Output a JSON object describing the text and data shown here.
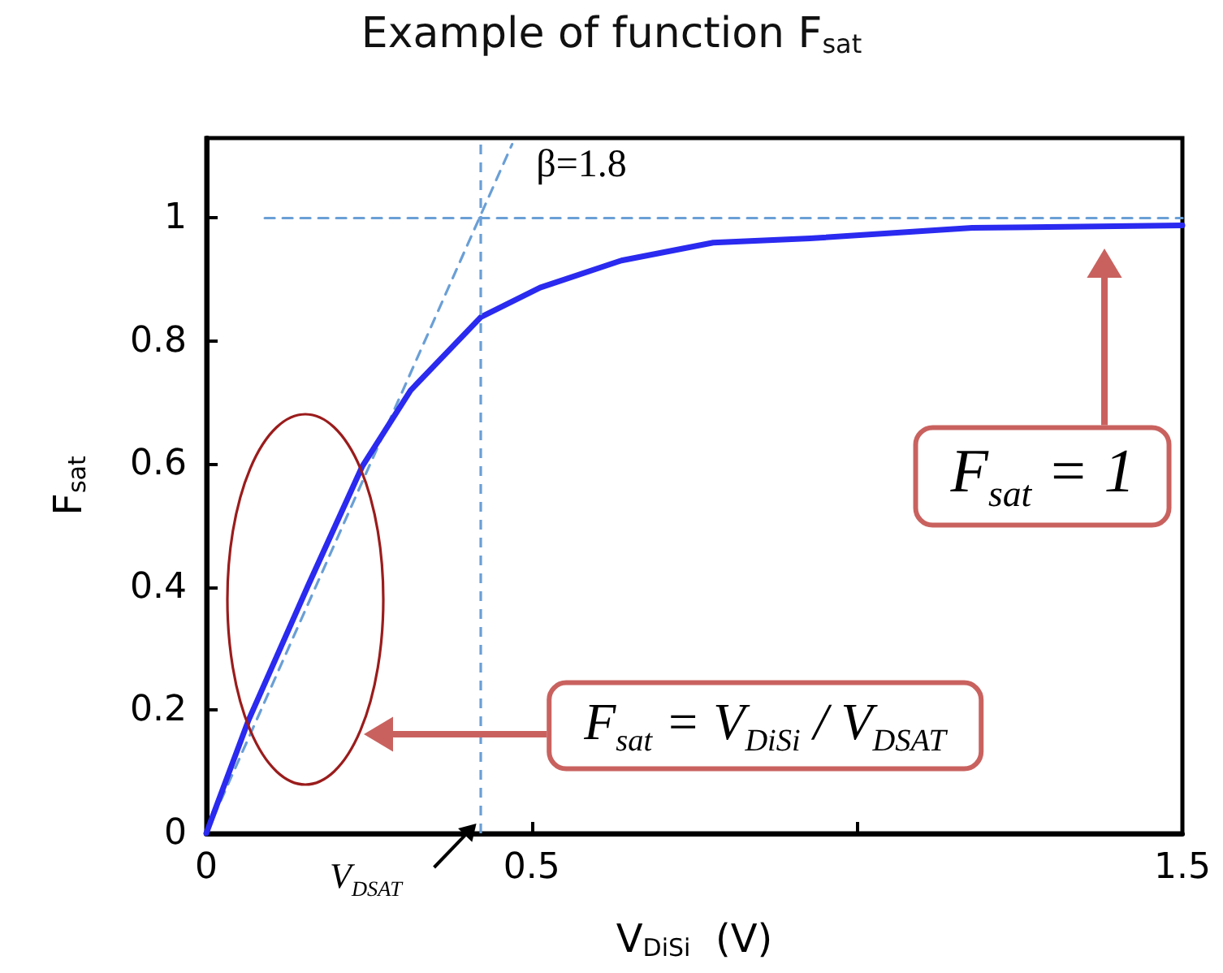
{
  "chart_data": {
    "type": "line",
    "title": "Example of function F$_{sat}$",
    "xlabel": "V$_{DiSi}$  (V)",
    "ylabel": "F$_{sat}$",
    "xlim": [
      0,
      1.5
    ],
    "ylim": [
      0,
      1.13
    ],
    "xticks": [
      0,
      0.5,
      {
        "value": 1,
        "label": null
      },
      1.5
    ],
    "yticks": [
      0,
      0.2,
      0.4,
      0.6,
      0.8,
      1
    ],
    "marker": "none",
    "grid": false,
    "series": [
      {
        "color": "#2a2af0",
        "x": [
          0,
          0.065,
          0.157,
          0.24,
          0.314,
          0.422,
          0.513,
          0.638,
          0.779,
          0.928,
          1.177,
          1.5
        ],
        "values": [
          0,
          0.184,
          0.404,
          0.597,
          0.72,
          0.839,
          0.887,
          0.931,
          0.96,
          0.967,
          0.984,
          0.988
        ]
      },
      {
        "color": "#6a9fd6",
        "line_style": "dashed",
        "x": [
          0,
          0.47
        ],
        "values": [
          0,
          1.12
        ]
      },
      {
        "color": "#6a9fd6",
        "line_style": "dashed",
        "x": [
          0.09,
          1.5
        ],
        "values": [
          1,
          1
        ]
      }
    ],
    "ref_lines": [
      {
        "axis": "x",
        "value": 0.42,
        "color": "#6a9fd6",
        "line_style": "dashed"
      }
    ],
    "annotations": [
      "β=1.8",
      {
        "text": "V$_{DSAT}$",
        "x": 0.42,
        "y": 0
      },
      "F$_{sat}$ = 1",
      "F$_{sat}$ = V$_{DiSi}$ / V$_{DSAT}$"
    ]
  }
}
